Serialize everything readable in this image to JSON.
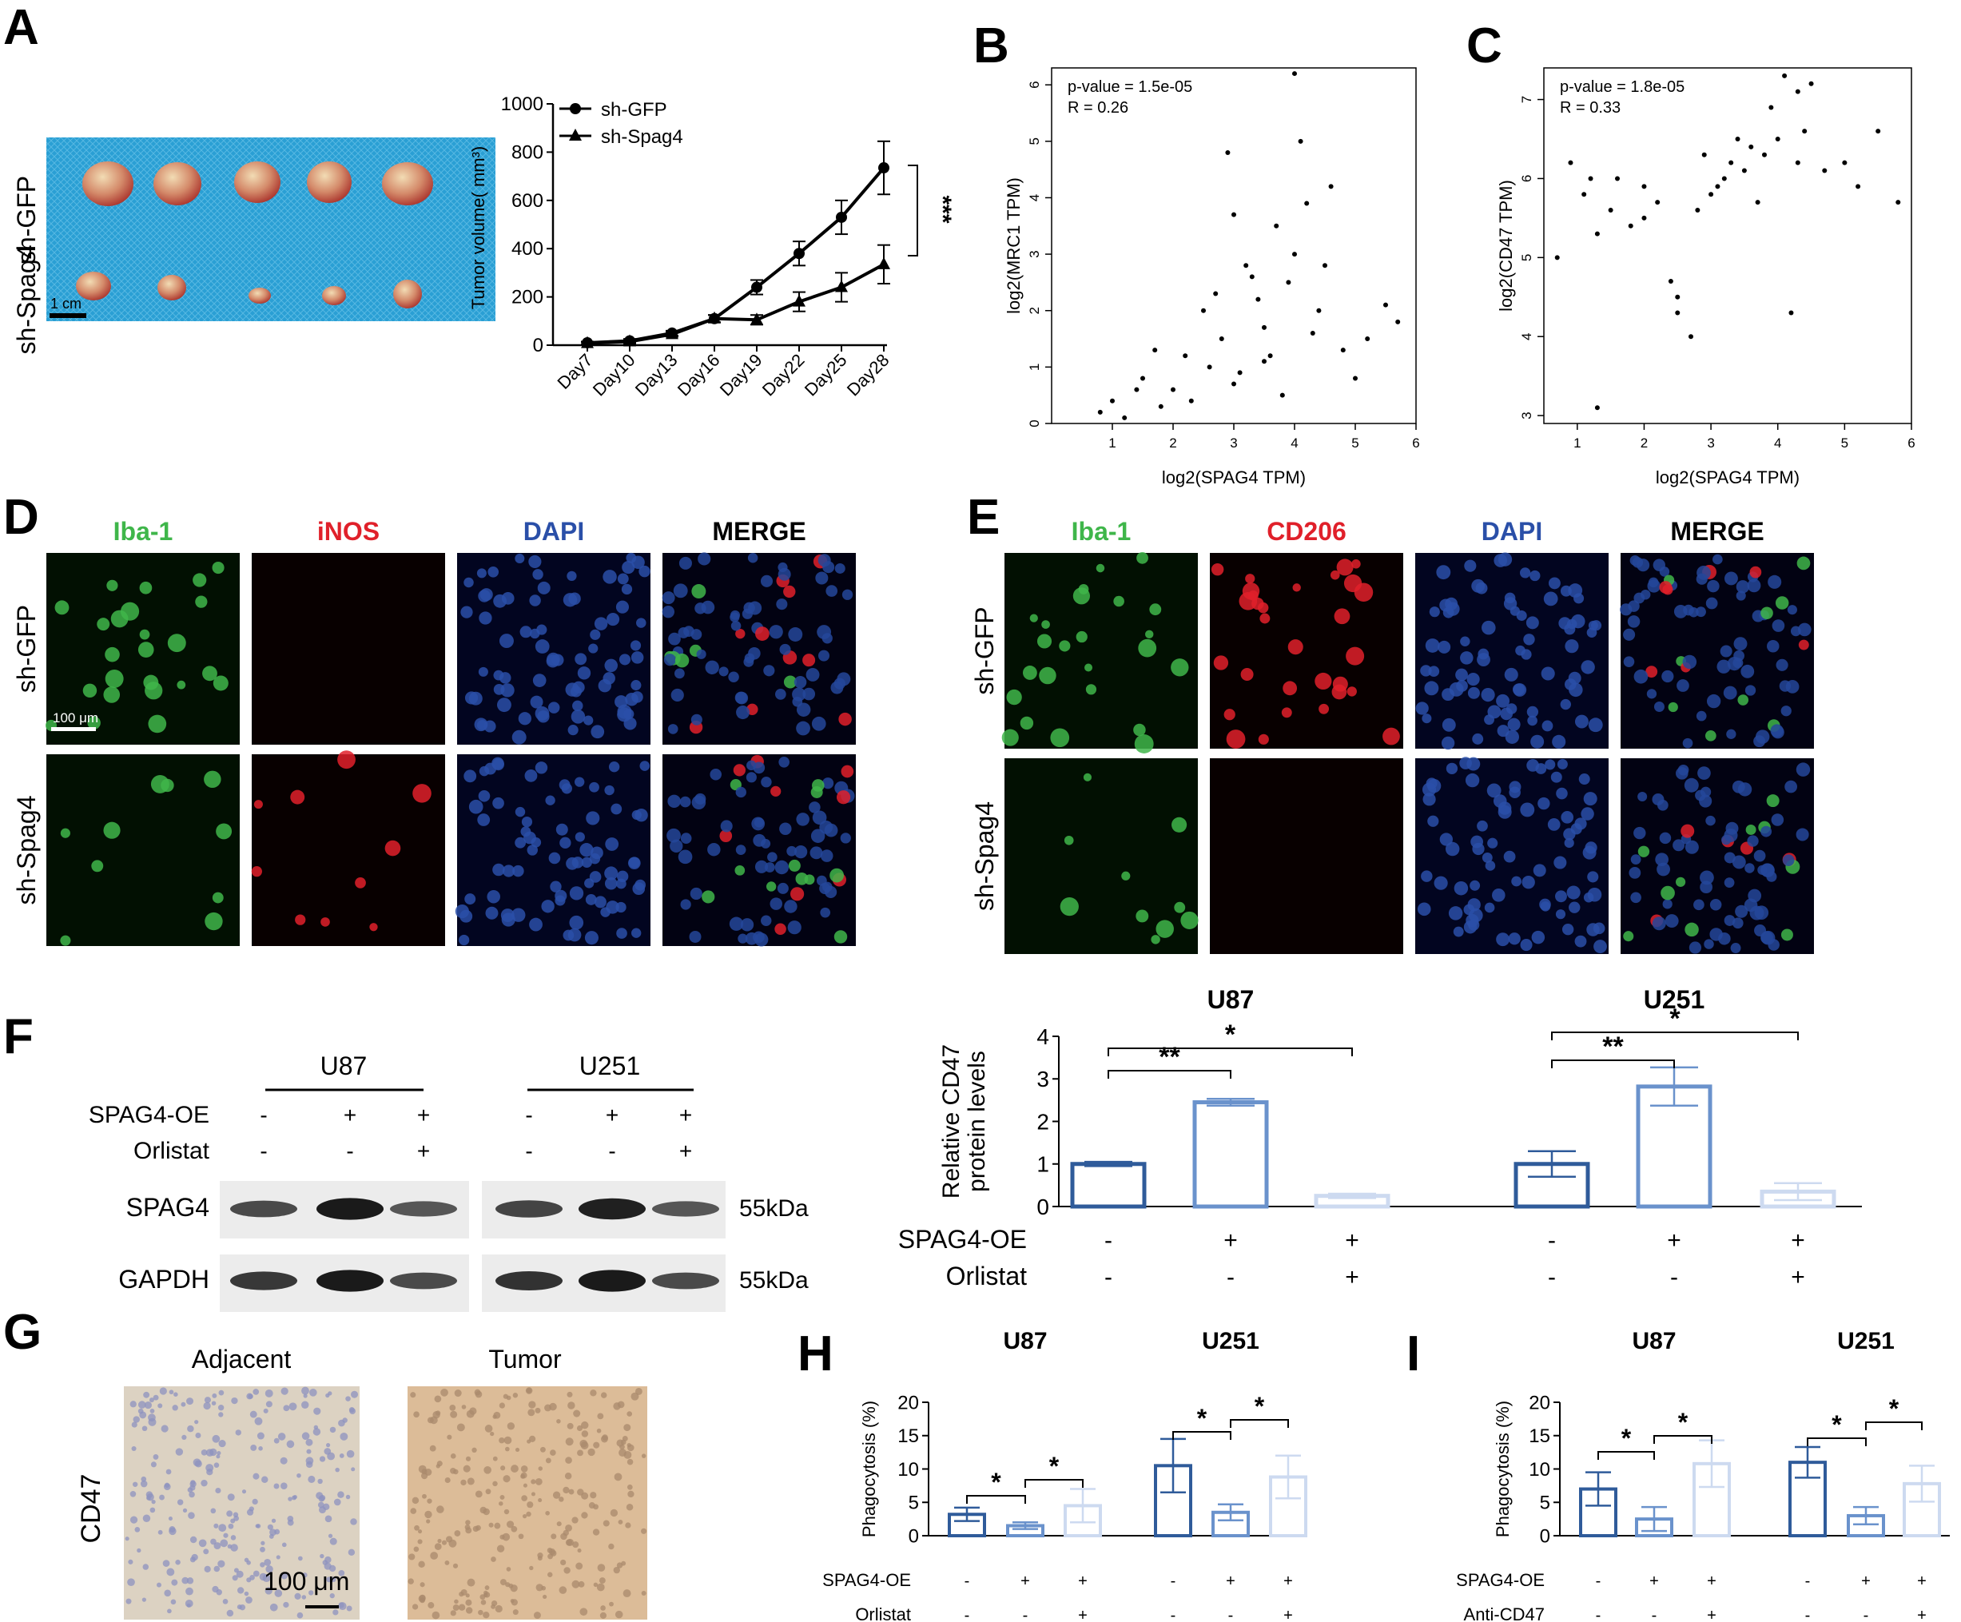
{
  "panel_letters": {
    "A": "A",
    "B": "B",
    "C": "C",
    "D": "D",
    "E": "E",
    "F": "F",
    "G": "G",
    "H": "H",
    "I": "I"
  },
  "colors": {
    "u87_bar_dark": "#2f5b9a",
    "u87_bar_mid": "#6a92cc",
    "u87_bar_light": "#cddaf0",
    "iba1": "#3fb64a",
    "inos": "#e0202a",
    "cd206": "#e0202a",
    "dapi": "#2a4fa8",
    "merge": "#000000",
    "ihc_adjacent": "#d8cdbc",
    "ihc_tumor": "#d9b996",
    "tumor_photo_bg": "#2a9fd4"
  },
  "panelA": {
    "photo_rows": [
      "sh-GFP",
      "sh-Spag4"
    ],
    "scalebar": "1 cm",
    "legend": [
      "sh-GFP",
      "sh-Spag4"
    ],
    "ylabel": "Tumor volume( mm³)",
    "significance": "***"
  },
  "panelD": {
    "columns": [
      {
        "label": "Iba-1",
        "color": "#3fb64a"
      },
      {
        "label": "iNOS",
        "color": "#e0202a"
      },
      {
        "label": "DAPI",
        "color": "#2a4fa8"
      },
      {
        "label": "MERGE",
        "color": "#000000"
      }
    ],
    "rows": [
      "sh-GFP",
      "sh-Spag4"
    ],
    "scalebar": "100 μm"
  },
  "panelE": {
    "columns": [
      {
        "label": "Iba-1",
        "color": "#3fb64a"
      },
      {
        "label": "CD206",
        "color": "#e0202a"
      },
      {
        "label": "DAPI",
        "color": "#2a4fa8"
      },
      {
        "label": "MERGE",
        "color": "#000000"
      }
    ],
    "rows": [
      "sh-GFP",
      "sh-Spag4"
    ]
  },
  "panelF": {
    "blot": {
      "groups": [
        "U87",
        "U251"
      ],
      "row_labels": [
        "SPAG4-OE",
        "Orlistat"
      ],
      "spag4_oe": [
        "-",
        "+",
        "+",
        "-",
        "+",
        "+"
      ],
      "orlistat": [
        "-",
        "-",
        "+",
        "-",
        "-",
        "+"
      ],
      "bands": [
        "SPAG4",
        "GAPDH"
      ],
      "band_intensity": {
        "SPAG4": [
          0.55,
          0.95,
          0.45,
          0.6,
          0.9,
          0.45
        ],
        "GAPDH": [
          0.7,
          0.95,
          0.55,
          0.75,
          0.95,
          0.55
        ]
      },
      "size_labels": [
        "55kDa",
        "55kDa"
      ]
    },
    "bar_ylabel": [
      "Relative CD47",
      "protein levels"
    ],
    "cond_labels": [
      "SPAG4-OE",
      "Orlistat"
    ],
    "spag4_oe": [
      "-",
      "+",
      "+",
      "-",
      "+",
      "+"
    ],
    "orlistat": [
      "-",
      "-",
      "+",
      "-",
      "-",
      "+"
    ],
    "sig_u87": [
      "**",
      "*"
    ],
    "sig_u251": [
      "**",
      "*"
    ]
  },
  "panelG": {
    "columns": [
      "Adjacent",
      "Tumor"
    ],
    "row": "CD47",
    "scalebar": "100 μm"
  },
  "panelH": {
    "cond_labels": [
      "SPAG4-OE",
      "Orlistat"
    ],
    "spag4_oe": [
      "-",
      "+",
      "+",
      "-",
      "+",
      "+"
    ],
    "treat": [
      "-",
      "-",
      "+",
      "-",
      "-",
      "+"
    ],
    "sig": [
      "*",
      "*",
      "*",
      "*"
    ]
  },
  "panelI": {
    "cond_labels": [
      "SPAG4-OE",
      "Anti-CD47"
    ],
    "spag4_oe": [
      "-",
      "+",
      "+",
      "-",
      "+",
      "+"
    ],
    "treat": [
      "-",
      "-",
      "+",
      "-",
      "-",
      "+"
    ],
    "sig": [
      "*",
      "*",
      "*",
      "*"
    ]
  },
  "chart_data": [
    {
      "id": "A",
      "type": "line",
      "x": [
        "Day7",
        "Day10",
        "Day13",
        "Day16",
        "Day19",
        "Day22",
        "Day25",
        "Day28"
      ],
      "series": [
        {
          "name": "sh-GFP",
          "values": [
            10,
            18,
            50,
            110,
            240,
            380,
            530,
            735
          ],
          "errors": [
            5,
            8,
            10,
            15,
            30,
            50,
            70,
            110
          ]
        },
        {
          "name": "sh-Spag4",
          "values": [
            8,
            15,
            45,
            110,
            105,
            180,
            240,
            335
          ],
          "errors": [
            5,
            8,
            10,
            15,
            20,
            40,
            60,
            80
          ]
        }
      ],
      "ylabel": "Tumor volume( mm³)",
      "ylim": [
        0,
        1000
      ],
      "yticks": [
        0,
        200,
        400,
        600,
        800,
        1000
      ]
    },
    {
      "id": "B",
      "type": "scatter",
      "annotation": [
        "p-value = 1.5e-05",
        "R = 0.26"
      ],
      "xlabel": "log2(SPAG4 TPM)",
      "ylabel": "log2(MRC1 TPM)",
      "xlim": [
        0,
        6
      ],
      "ylim": [
        0,
        6.3
      ],
      "xticks": [
        1,
        2,
        3,
        4,
        5,
        6
      ],
      "yticks": [
        0,
        1,
        2,
        3,
        4,
        5,
        6
      ],
      "x": [
        0.8,
        1.0,
        1.2,
        1.5,
        1.8,
        2.0,
        2.2,
        2.5,
        2.8,
        3.0,
        3.2,
        3.5,
        3.7,
        3.9,
        4.0,
        4.1,
        4.2,
        4.4,
        4.6,
        4.8,
        5.0,
        5.2,
        5.5,
        5.7,
        2.9,
        3.3,
        3.6,
        3.8,
        4.0,
        4.3,
        2.6,
        3.1,
        3.4,
        1.4,
        1.7,
        2.3,
        2.7,
        3.0,
        3.5,
        4.5
      ],
      "y": [
        0.2,
        0.4,
        0.1,
        0.8,
        0.3,
        0.6,
        1.2,
        2.0,
        1.5,
        0.7,
        2.8,
        1.1,
        3.5,
        2.5,
        6.2,
        5.0,
        3.9,
        2.0,
        4.2,
        1.3,
        0.8,
        1.5,
        2.1,
        1.8,
        4.8,
        2.6,
        1.2,
        0.5,
        3.0,
        1.6,
        1.0,
        0.9,
        2.2,
        0.6,
        1.3,
        0.4,
        2.3,
        3.7,
        1.7,
        2.8
      ]
    },
    {
      "id": "C",
      "type": "scatter",
      "annotation": [
        "p-value = 1.8e-05",
        "R = 0.33"
      ],
      "xlabel": "log2(SPAG4 TPM)",
      "ylabel": "log2(CD47 TPM)",
      "xlim": [
        0.5,
        6
      ],
      "ylim": [
        2.9,
        7.4
      ],
      "xticks": [
        1,
        2,
        3,
        4,
        5,
        6
      ],
      "yticks": [
        3,
        4,
        5,
        6,
        7
      ],
      "x": [
        0.7,
        0.9,
        1.1,
        1.3,
        1.5,
        1.8,
        2.0,
        2.2,
        2.5,
        2.7,
        2.9,
        3.0,
        3.2,
        3.4,
        3.5,
        3.7,
        3.8,
        4.0,
        4.1,
        4.2,
        4.3,
        4.5,
        4.7,
        5.0,
        5.2,
        5.5,
        5.8,
        1.3,
        2.4,
        2.5,
        3.9,
        4.3,
        1.2,
        2.0,
        3.1,
        3.3,
        3.6,
        4.4,
        1.6,
        2.8
      ],
      "y": [
        5.0,
        6.2,
        5.8,
        3.1,
        5.6,
        5.4,
        5.9,
        5.7,
        4.3,
        4.0,
        6.3,
        5.8,
        6.0,
        6.5,
        6.1,
        5.7,
        6.3,
        6.5,
        7.3,
        4.3,
        6.2,
        7.2,
        6.1,
        6.2,
        5.9,
        6.6,
        5.7,
        5.3,
        4.7,
        4.5,
        6.9,
        7.1,
        6.0,
        5.5,
        5.9,
        6.2,
        6.4,
        6.6,
        6.0,
        5.6
      ]
    },
    {
      "id": "F",
      "type": "bar",
      "groups": [
        "U87",
        "U251"
      ],
      "values": [
        1.0,
        2.45,
        0.25,
        1.0,
        2.82,
        0.35
      ],
      "errors": [
        0.05,
        0.08,
        0.05,
        0.3,
        0.45,
        0.2
      ],
      "ylabel": "Relative CD47 protein levels",
      "ylim": [
        0,
        4
      ],
      "yticks": [
        0,
        1,
        2,
        3,
        4
      ]
    },
    {
      "id": "H",
      "type": "bar",
      "groups": [
        "U87",
        "U251"
      ],
      "values": [
        3.2,
        1.5,
        4.5,
        10.5,
        3.5,
        8.8
      ],
      "errors": [
        1.0,
        0.5,
        2.5,
        4.0,
        1.2,
        3.2
      ],
      "ylabel": "Phagocytosis (%)",
      "ylim": [
        0,
        20
      ],
      "yticks": [
        0,
        5,
        10,
        15,
        20
      ]
    },
    {
      "id": "I",
      "type": "bar",
      "groups": [
        "U87",
        "U251"
      ],
      "values": [
        7.0,
        2.5,
        10.8,
        11.0,
        3.0,
        7.8
      ],
      "errors": [
        2.5,
        1.8,
        3.5,
        2.3,
        1.3,
        2.7
      ],
      "ylabel": "Phagocytosis (%)",
      "ylim": [
        0,
        20
      ],
      "yticks": [
        0,
        5,
        10,
        15,
        20
      ]
    }
  ]
}
